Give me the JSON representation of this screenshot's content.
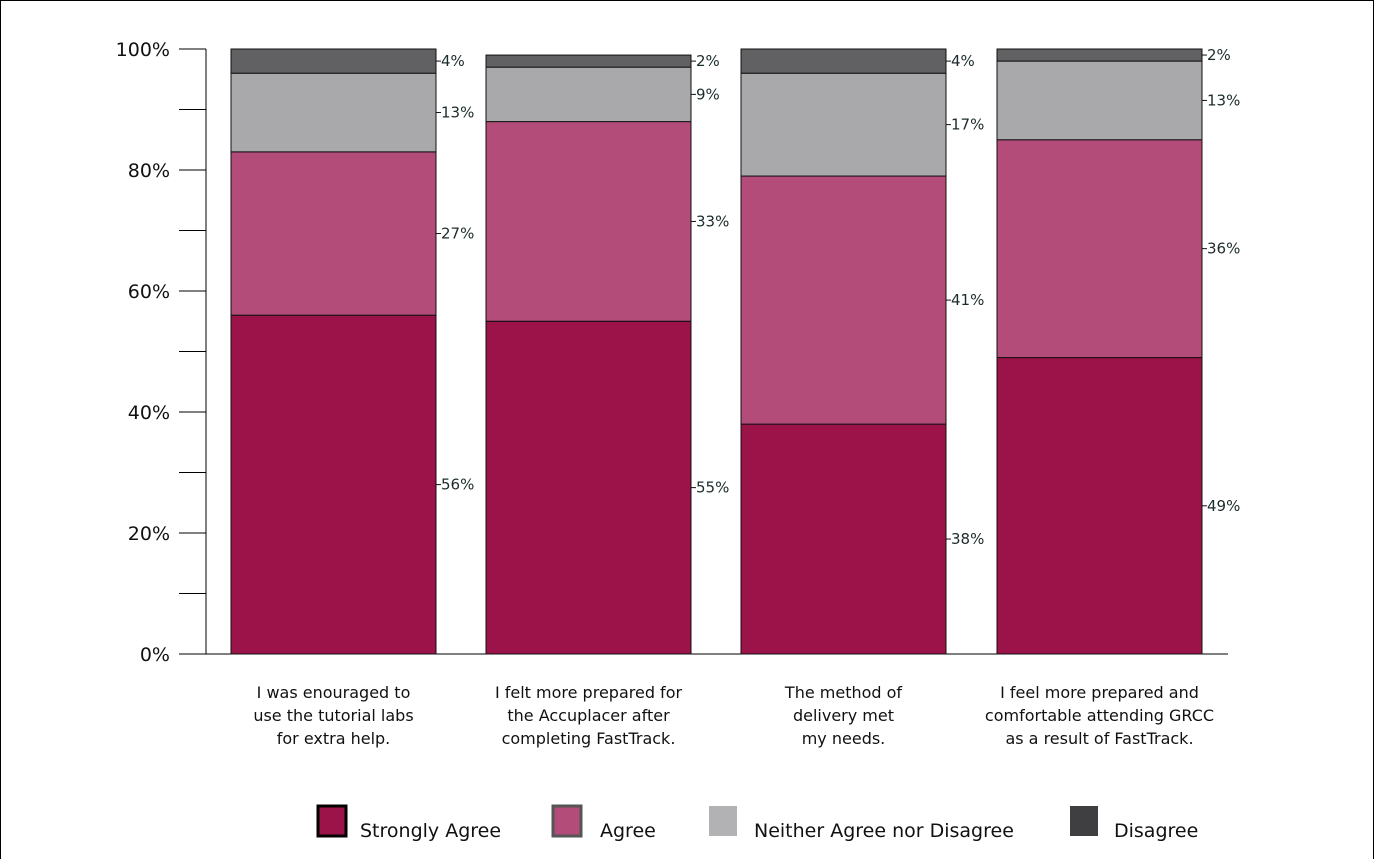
{
  "chart_data": {
    "type": "bar",
    "stacked": true,
    "categories": [
      [
        "I was enouraged to",
        "use the tutorial labs",
        "for extra help."
      ],
      [
        "I felt more prepared for",
        "the Accuplacer after",
        "completing FastTrack."
      ],
      [
        "The method of",
        "delivery met",
        "my needs."
      ],
      [
        "I feel more prepared and",
        "comfortable attending GRCC",
        "as a result of FastTrack."
      ]
    ],
    "series": [
      {
        "name": "Strongly Agree",
        "color": "#9b1349",
        "values": [
          56,
          55,
          38,
          49
        ]
      },
      {
        "name": "Agree",
        "color": "#b34c78",
        "values": [
          27,
          33,
          41,
          36
        ]
      },
      {
        "name": "Neither Agree nor Disagree",
        "color": "#a9a8aa",
        "values": [
          13,
          9,
          17,
          13
        ]
      },
      {
        "name": "Disagree",
        "color": "#616163",
        "values": [
          4,
          2,
          4,
          2
        ]
      }
    ],
    "value_labels": [
      [
        "56%",
        "27%",
        "13%",
        "4%"
      ],
      [
        "55%",
        "33%",
        "9%",
        "2%"
      ],
      [
        "38%",
        "41%",
        "17%",
        "4%"
      ],
      [
        "49%",
        "36%",
        "13%",
        "2%"
      ]
    ],
    "yticks": [
      0,
      20,
      40,
      60,
      80,
      100
    ],
    "ytick_labels": [
      "0%",
      "20%",
      "40%",
      "60%",
      "80%",
      "100%"
    ],
    "ylim": [
      0,
      100
    ],
    "legend": {
      "position": "bottom",
      "swatch_colors": [
        "#9b1349",
        "#b34c78",
        "#b2b1b3",
        "#3f3f41"
      ]
    }
  }
}
